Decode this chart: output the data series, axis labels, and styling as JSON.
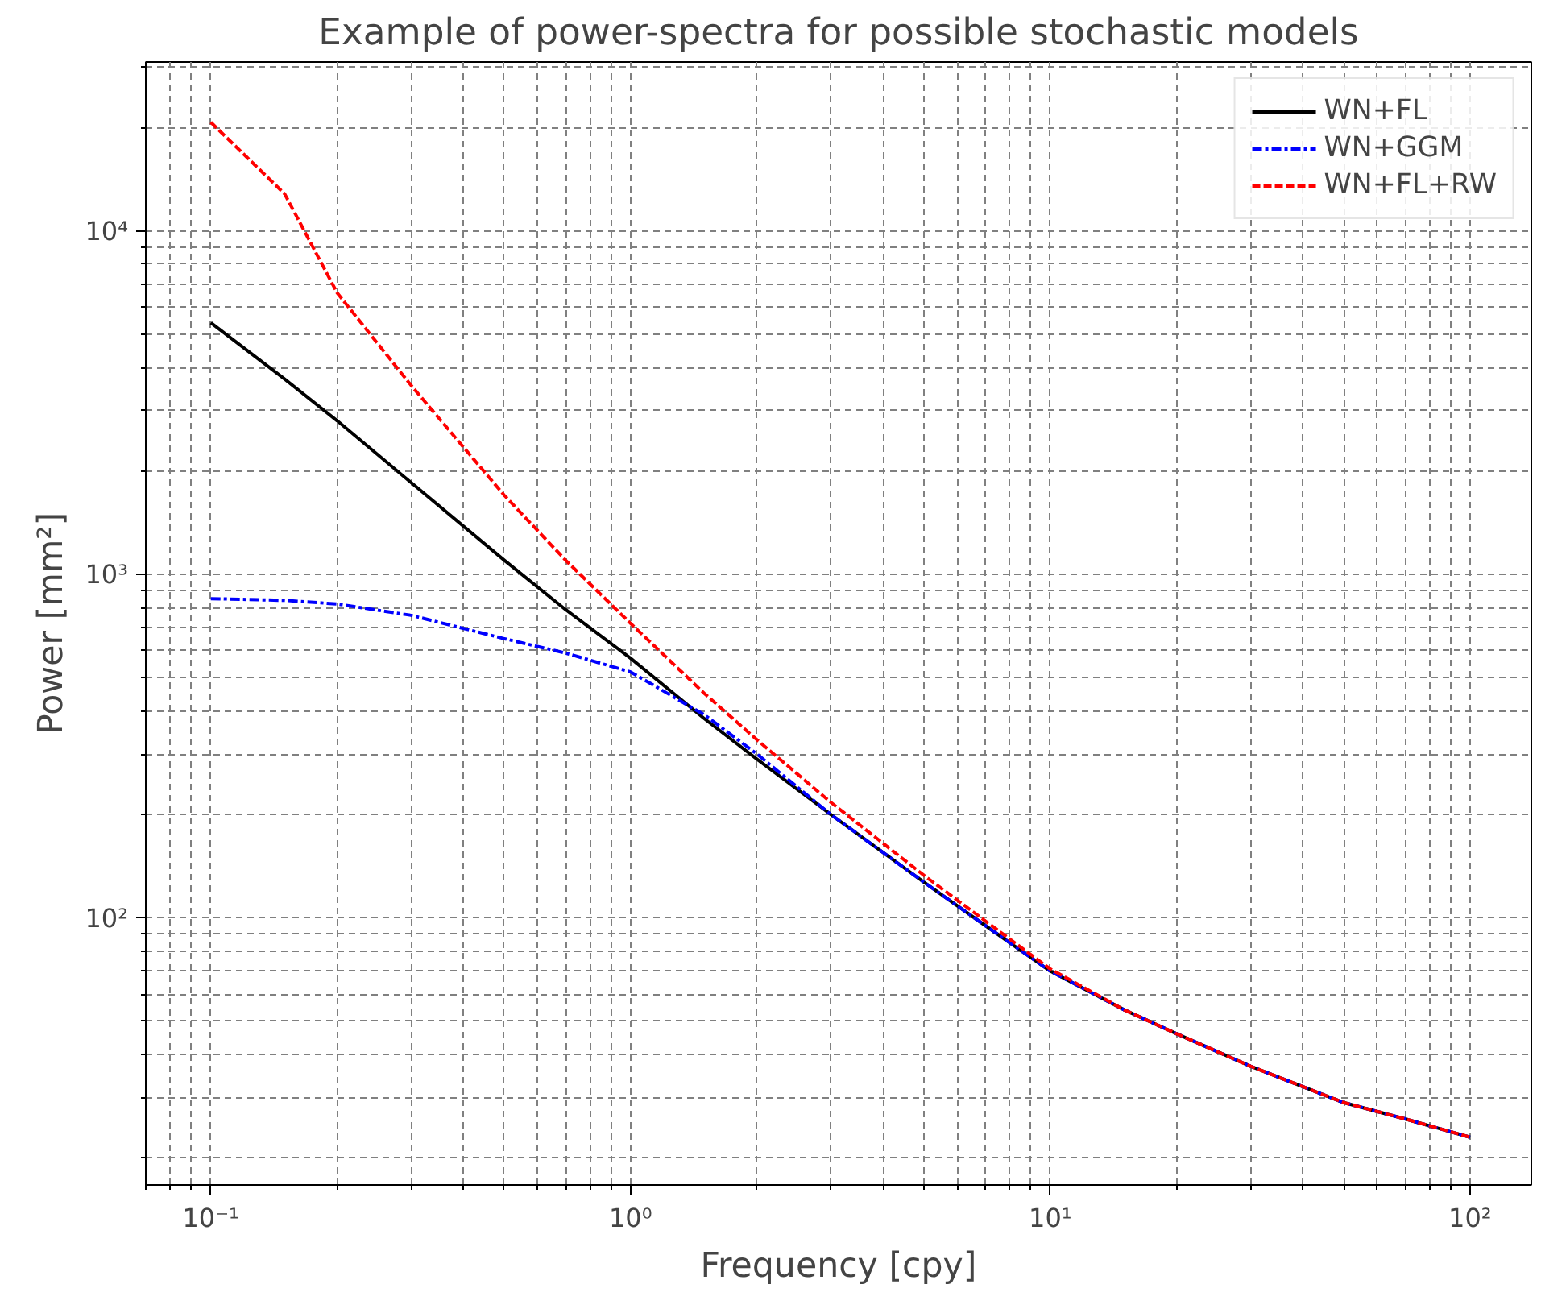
{
  "chart_data": {
    "type": "line",
    "title": "Example of power-spectra for possible stochastic models",
    "xlabel": "Frequency [cpy]",
    "ylabel": "Power [mm²]",
    "log": "xy",
    "grid": true,
    "legend": "top right",
    "xlim": [
      0.07,
      140
    ],
    "ylim": [
      16.7,
      31000
    ],
    "xticks": [
      {
        "value": 0.1,
        "label": "10⁻¹"
      },
      {
        "value": 1,
        "label": "10⁰"
      },
      {
        "value": 10,
        "label": "10¹"
      },
      {
        "value": 100,
        "label": "10²"
      }
    ],
    "yticks": [
      {
        "value": 100,
        "label": "10²"
      },
      {
        "value": 1000,
        "label": "10³"
      },
      {
        "value": 10000,
        "label": "10⁴"
      }
    ],
    "x": [
      0.1,
      0.15,
      0.2,
      0.3,
      0.5,
      0.7,
      1,
      1.5,
      2,
      3,
      5,
      7,
      10,
      15,
      20,
      30,
      50,
      70,
      100
    ],
    "series": [
      {
        "name": "WN+FL",
        "color": "#000000",
        "line_style": "solid",
        "values": [
          5400,
          3700,
          2800,
          1850,
          1100,
          790,
          570,
          380,
          290,
          200,
          127,
          95,
          70,
          54,
          46,
          37,
          29,
          26,
          23
        ]
      },
      {
        "name": "WN+GGM",
        "color": "#0000ff",
        "line_style": "dashdot",
        "values": [
          850,
          840,
          820,
          760,
          650,
          590,
          520,
          390,
          300,
          200,
          127,
          95,
          70,
          54,
          46,
          37,
          29,
          26,
          23
        ]
      },
      {
        "name": "WN+FL+RW",
        "color": "#ff0000",
        "line_style": "dashed",
        "values": [
          20700,
          12800,
          6600,
          3550,
          1700,
          1100,
          720,
          450,
          330,
          217,
          133,
          98,
          71,
          54,
          46,
          37,
          29,
          26,
          23
        ]
      }
    ]
  }
}
